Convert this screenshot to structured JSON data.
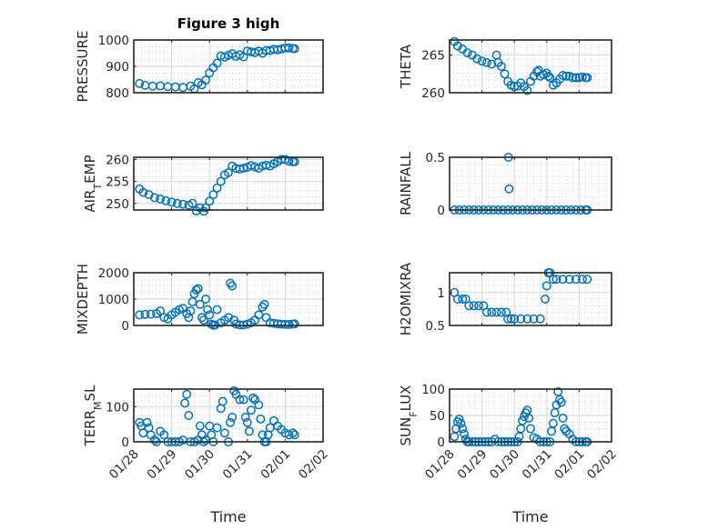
{
  "figure": {
    "title": "Figure 3 high",
    "marker_color": "#0072BD",
    "marker": "circle-open"
  },
  "chart_data": [
    {
      "id": "pressure",
      "type": "scatter",
      "title": "Figure 3 high",
      "ylabel": "PRESSURE",
      "ylabel_sub": null,
      "xlabel": "",
      "ylim": [
        800,
        1000
      ],
      "yticks": [
        800,
        900,
        1000
      ],
      "ytick_labels": [
        "800",
        "900",
        "1000"
      ],
      "xlim_days": [
        0,
        5
      ],
      "xtick_labels": [
        "01/28",
        "01/29",
        "01/30",
        "01/31",
        "02/01",
        "02/02"
      ],
      "show_xtick_labels": false,
      "grid": true,
      "minor_grid": true,
      "x": [
        0.15,
        0.3,
        0.5,
        0.7,
        0.9,
        1.1,
        1.3,
        1.5,
        1.6,
        1.7,
        1.8,
        1.9,
        2.0,
        2.1,
        2.2,
        2.3,
        2.4,
        2.5,
        2.6,
        2.7,
        2.8,
        2.9,
        3.0,
        3.1,
        3.2,
        3.3,
        3.4,
        3.5,
        3.6,
        3.7,
        3.8,
        3.9,
        4.0,
        4.1,
        4.2,
        4.25
      ],
      "y": [
        835,
        828,
        825,
        826,
        823,
        822,
        820,
        825,
        815,
        838,
        830,
        848,
        875,
        895,
        912,
        940,
        935,
        942,
        948,
        938,
        944,
        936,
        958,
        955,
        952,
        958,
        950,
        960,
        960,
        965,
        963,
        966,
        970,
        970,
        968,
        967
      ]
    },
    {
      "id": "theta",
      "type": "scatter",
      "ylabel": "THETA",
      "ylabel_sub": null,
      "xlabel": "",
      "ylim": [
        260,
        267
      ],
      "yticks": [
        260,
        265
      ],
      "ytick_labels": [
        "260",
        "265"
      ],
      "xlim_days": [
        0,
        5
      ],
      "xtick_labels": [
        "01/28",
        "01/29",
        "01/30",
        "01/31",
        "02/01",
        "02/02"
      ],
      "show_xtick_labels": false,
      "grid": true,
      "minor_grid": true,
      "x": [
        0.15,
        0.25,
        0.4,
        0.55,
        0.7,
        0.85,
        1.0,
        1.15,
        1.3,
        1.45,
        1.5,
        1.6,
        1.7,
        1.8,
        1.9,
        2.0,
        2.1,
        2.2,
        2.3,
        2.4,
        2.5,
        2.6,
        2.7,
        2.75,
        2.8,
        2.9,
        3.0,
        3.05,
        3.1,
        3.2,
        3.3,
        3.4,
        3.5,
        3.6,
        3.7,
        3.8,
        3.9,
        4.0,
        4.1,
        4.2,
        4.25
      ],
      "y": [
        266.8,
        266.2,
        265.8,
        265.3,
        265.0,
        264.5,
        264.2,
        264.0,
        263.8,
        265.0,
        264.0,
        263.5,
        262.5,
        261.5,
        261.0,
        260.8,
        260.9,
        261.3,
        260.8,
        260.3,
        261.5,
        262.2,
        262.8,
        263.0,
        262.2,
        262.4,
        262.6,
        262.2,
        262.0,
        261.0,
        261.3,
        261.8,
        262.3,
        262.2,
        262.2,
        262.0,
        262.0,
        262.0,
        262.1,
        262.0,
        262.0
      ]
    },
    {
      "id": "air_temp",
      "type": "scatter",
      "ylabel": "AIR",
      "ylabel_sub": "T",
      "ylabel_rest": "EMP",
      "xlabel": "",
      "ylim": [
        248.5,
        260.5
      ],
      "yticks": [
        250,
        255,
        260
      ],
      "ytick_labels": [
        "250",
        "255",
        "260"
      ],
      "xlim_days": [
        0,
        5
      ],
      "xtick_labels": [
        "01/28",
        "01/29",
        "01/30",
        "01/31",
        "02/01",
        "02/02"
      ],
      "show_xtick_labels": false,
      "grid": true,
      "minor_grid": true,
      "x": [
        0.15,
        0.25,
        0.4,
        0.55,
        0.7,
        0.85,
        1.0,
        1.15,
        1.3,
        1.45,
        1.55,
        1.65,
        1.75,
        1.85,
        1.9,
        2.0,
        2.1,
        2.2,
        2.3,
        2.4,
        2.5,
        2.6,
        2.7,
        2.8,
        2.9,
        3.0,
        3.1,
        3.2,
        3.3,
        3.4,
        3.5,
        3.6,
        3.7,
        3.8,
        3.9,
        4.0,
        4.1,
        4.2,
        4.25
      ],
      "y": [
        253.3,
        252.5,
        252.0,
        251.3,
        251.0,
        250.6,
        250.3,
        250.0,
        249.8,
        249.6,
        250.0,
        248.3,
        249.0,
        248.2,
        249.0,
        250.5,
        252.0,
        253.5,
        255.0,
        256.5,
        257.0,
        258.5,
        258.0,
        257.8,
        258.0,
        258.2,
        258.6,
        258.3,
        258.0,
        258.5,
        258.7,
        258.5,
        259.0,
        259.5,
        260.0,
        260.0,
        259.6,
        259.5,
        259.5
      ]
    },
    {
      "id": "rainfall",
      "type": "scatter",
      "ylabel": "RAINFALL",
      "ylabel_sub": null,
      "xlabel": "",
      "ylim": [
        0,
        0.5
      ],
      "yticks": [
        0,
        0.5
      ],
      "ytick_labels": [
        "0",
        "0.5"
      ],
      "xlim_days": [
        0,
        5
      ],
      "xtick_labels": [
        "01/28",
        "01/29",
        "01/30",
        "01/31",
        "02/01",
        "02/02"
      ],
      "show_xtick_labels": false,
      "grid": true,
      "minor_grid": true,
      "x": [
        0.15,
        0.3,
        0.45,
        0.6,
        0.75,
        0.9,
        1.05,
        1.2,
        1.35,
        1.5,
        1.65,
        1.8,
        1.95,
        2.1,
        2.25,
        2.4,
        2.55,
        2.7,
        2.85,
        3.0,
        3.15,
        3.3,
        3.45,
        3.6,
        3.75,
        3.9,
        4.05,
        4.2,
        4.25,
        1.82,
        1.84
      ],
      "y": [
        0,
        0,
        0,
        0,
        0,
        0,
        0,
        0,
        0,
        0,
        0,
        0,
        0,
        0,
        0,
        0,
        0,
        0,
        0,
        0,
        0,
        0,
        0,
        0,
        0,
        0,
        0,
        0,
        0,
        0.5,
        0.2
      ]
    },
    {
      "id": "mixdepth",
      "type": "scatter",
      "ylabel": "MIXDEPTH",
      "ylabel_sub": null,
      "xlabel": "",
      "ylim": [
        0,
        2000
      ],
      "yticks": [
        0,
        1000,
        2000
      ],
      "ytick_labels": [
        "0",
        "1000",
        "2000"
      ],
      "xlim_days": [
        0,
        5
      ],
      "xtick_labels": [
        "01/28",
        "01/29",
        "01/30",
        "01/31",
        "02/01",
        "02/02"
      ],
      "show_xtick_labels": false,
      "grid": true,
      "minor_grid": true,
      "x": [
        0.15,
        0.3,
        0.45,
        0.6,
        0.7,
        0.8,
        0.9,
        1.0,
        1.1,
        1.2,
        1.3,
        1.4,
        1.45,
        1.5,
        1.55,
        1.6,
        1.65,
        1.7,
        1.75,
        1.8,
        1.85,
        1.9,
        1.95,
        2.0,
        2.05,
        2.1,
        2.15,
        2.2,
        2.3,
        2.4,
        2.5,
        2.55,
        2.6,
        2.65,
        2.7,
        2.8,
        2.9,
        3.0,
        3.1,
        3.2,
        3.3,
        3.4,
        3.45,
        3.5,
        3.6,
        3.7,
        3.8,
        3.9,
        4.0,
        4.1,
        4.2,
        4.25
      ],
      "y": [
        400,
        420,
        430,
        450,
        550,
        300,
        250,
        400,
        500,
        600,
        650,
        450,
        300,
        550,
        900,
        1200,
        1350,
        1400,
        800,
        300,
        200,
        1000,
        600,
        400,
        50,
        10,
        20,
        600,
        100,
        200,
        300,
        1600,
        1500,
        200,
        50,
        20,
        20,
        50,
        100,
        200,
        400,
        700,
        800,
        300,
        100,
        80,
        60,
        50,
        40,
        40,
        50,
        60
      ]
    },
    {
      "id": "h2omixra",
      "type": "scatter",
      "ylabel": "H2OMIXRA",
      "ylabel_sub": null,
      "xlabel": "",
      "ylim": [
        0.5,
        1.3
      ],
      "yticks": [
        0.5,
        1
      ],
      "ytick_labels": [
        "0.5",
        "1"
      ],
      "xlim_days": [
        0,
        5
      ],
      "xtick_labels": [
        "01/28",
        "01/29",
        "01/30",
        "01/31",
        "02/01",
        "02/02"
      ],
      "show_xtick_labels": false,
      "grid": true,
      "minor_grid": true,
      "x": [
        0.15,
        0.25,
        0.4,
        0.5,
        0.6,
        0.75,
        0.9,
        1.05,
        1.15,
        1.3,
        1.45,
        1.6,
        1.75,
        1.8,
        1.9,
        2.0,
        2.2,
        2.4,
        2.6,
        2.8,
        2.95,
        3.0,
        3.05,
        3.1,
        3.2,
        3.3,
        3.5,
        3.7,
        3.9,
        4.1,
        4.25
      ],
      "y": [
        1.0,
        0.9,
        0.9,
        0.9,
        0.8,
        0.8,
        0.8,
        0.8,
        0.7,
        0.7,
        0.7,
        0.7,
        0.7,
        0.6,
        0.6,
        0.6,
        0.6,
        0.6,
        0.6,
        0.6,
        0.9,
        1.1,
        1.3,
        1.3,
        1.2,
        1.2,
        1.2,
        1.2,
        1.2,
        1.2,
        1.2
      ]
    },
    {
      "id": "terr_msl",
      "type": "scatter",
      "ylabel": "TERR",
      "ylabel_sub": "M",
      "ylabel_rest": "SL",
      "xlabel": "Time",
      "ylim": [
        0,
        150
      ],
      "yticks": [
        0,
        100
      ],
      "ytick_labels": [
        "0",
        "100"
      ],
      "xlim_days": [
        0,
        5
      ],
      "xtick_labels": [
        "01/28",
        "01/29",
        "01/30",
        "01/31",
        "02/01",
        "02/02"
      ],
      "show_xtick_labels": true,
      "grid": true,
      "minor_grid": true,
      "x": [
        0.15,
        0.2,
        0.25,
        0.35,
        0.4,
        0.45,
        0.55,
        0.6,
        0.7,
        0.8,
        0.9,
        1.0,
        1.1,
        1.2,
        1.3,
        1.35,
        1.4,
        1.45,
        1.5,
        1.6,
        1.7,
        1.75,
        1.8,
        1.85,
        1.9,
        2.0,
        2.05,
        2.1,
        2.2,
        2.3,
        2.35,
        2.4,
        2.5,
        2.55,
        2.6,
        2.65,
        2.7,
        2.8,
        2.9,
        2.95,
        3.0,
        3.05,
        3.1,
        3.15,
        3.2,
        3.3,
        3.35,
        3.4,
        3.45,
        3.5,
        3.55,
        3.6,
        3.7,
        3.8,
        3.9,
        4.0,
        4.1,
        4.2,
        4.25
      ],
      "y": [
        55,
        45,
        25,
        55,
        40,
        20,
        5,
        0,
        30,
        20,
        0,
        0,
        0,
        0,
        5,
        110,
        135,
        75,
        0,
        0,
        5,
        45,
        20,
        0,
        5,
        45,
        20,
        0,
        40,
        95,
        115,
        25,
        0,
        55,
        70,
        145,
        135,
        120,
        120,
        70,
        55,
        30,
        90,
        125,
        120,
        105,
        65,
        20,
        0,
        0,
        20,
        40,
        60,
        45,
        35,
        25,
        20,
        25,
        20
      ]
    },
    {
      "id": "sun_flux",
      "type": "scatter",
      "ylabel": "SUN",
      "ylabel_sub": "F",
      "ylabel_rest": "LUX",
      "xlabel": "Time",
      "ylim": [
        0,
        100
      ],
      "yticks": [
        0,
        50,
        100
      ],
      "ytick_labels": [
        "0",
        "50",
        "100"
      ],
      "xlim_days": [
        0,
        5
      ],
      "xtick_labels": [
        "01/28",
        "01/29",
        "01/30",
        "01/31",
        "02/01",
        "02/02"
      ],
      "show_xtick_labels": true,
      "grid": true,
      "minor_grid": true,
      "x": [
        0.15,
        0.2,
        0.25,
        0.3,
        0.35,
        0.4,
        0.45,
        0.5,
        0.55,
        0.6,
        0.7,
        0.8,
        0.9,
        1.0,
        1.1,
        1.2,
        1.3,
        1.4,
        1.5,
        1.6,
        1.7,
        1.8,
        1.9,
        2.0,
        2.1,
        2.15,
        2.2,
        2.25,
        2.3,
        2.35,
        2.4,
        2.45,
        2.5,
        2.6,
        2.7,
        2.8,
        2.9,
        3.0,
        3.1,
        3.15,
        3.2,
        3.25,
        3.3,
        3.35,
        3.4,
        3.45,
        3.5,
        3.55,
        3.6,
        3.7,
        3.8,
        3.9,
        4.0,
        4.1,
        4.2,
        4.25
      ],
      "y": [
        10,
        25,
        38,
        43,
        35,
        25,
        15,
        5,
        0,
        0,
        0,
        0,
        0,
        0,
        0,
        0,
        0,
        5,
        0,
        0,
        0,
        0,
        0,
        0,
        0,
        10,
        25,
        40,
        48,
        55,
        60,
        45,
        25,
        8,
        5,
        0,
        0,
        0,
        0,
        20,
        35,
        55,
        70,
        95,
        80,
        75,
        45,
        25,
        20,
        15,
        5,
        0,
        0,
        0,
        0,
        0
      ]
    }
  ]
}
